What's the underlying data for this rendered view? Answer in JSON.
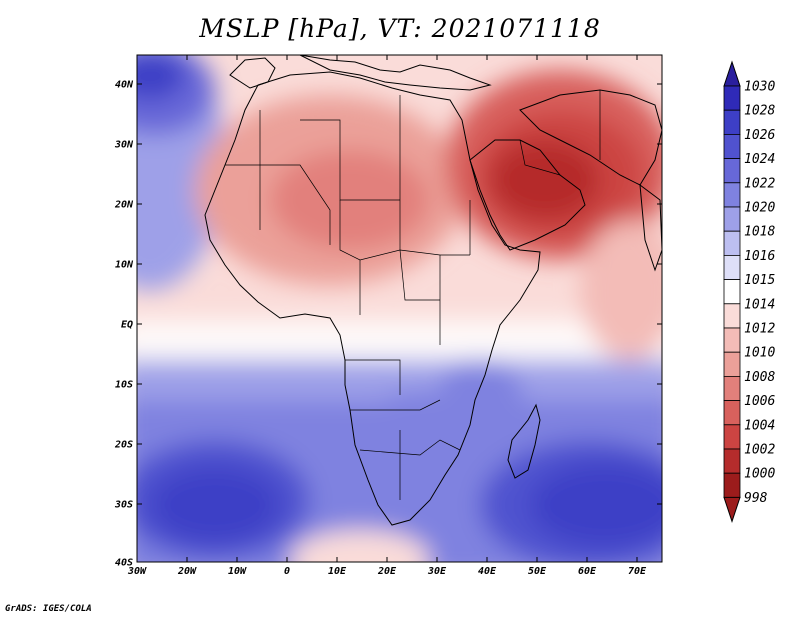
{
  "title": "MSLP [hPa], VT: 2021071118",
  "credit": "GrADS: IGES/COLA",
  "axes": {
    "lon_ticks": [
      "30W",
      "20W",
      "10W",
      "0",
      "10E",
      "20E",
      "30E",
      "40E",
      "50E",
      "60E",
      "70E"
    ],
    "lat_ticks": [
      "40N",
      "30N",
      "20N",
      "10N",
      "EQ",
      "10S",
      "20S",
      "30S",
      "40S"
    ]
  },
  "colorbar": {
    "levels": [
      "1030",
      "1028",
      "1026",
      "1024",
      "1022",
      "1020",
      "1018",
      "1016",
      "1015",
      "1014",
      "1012",
      "1010",
      "1008",
      "1006",
      "1004",
      "1002",
      "1000",
      "998"
    ],
    "colors": [
      "#2a1f9e",
      "#2f2ab8",
      "#3d3fc6",
      "#5052cf",
      "#6768d8",
      "#7f82e0",
      "#9ea0e8",
      "#bdbff1",
      "#dedff8",
      "#ffffff",
      "#fadcd9",
      "#f3bcb7",
      "#eba099",
      "#e2807b",
      "#d8615d",
      "#cc4442",
      "#b52c2c",
      "#9c1c1c"
    ]
  },
  "colors": {
    "high_pressure": "#2a1f9e",
    "low_pressure": "#b01e1e",
    "neutral": "#ffffff",
    "coastline": "#000000"
  }
}
